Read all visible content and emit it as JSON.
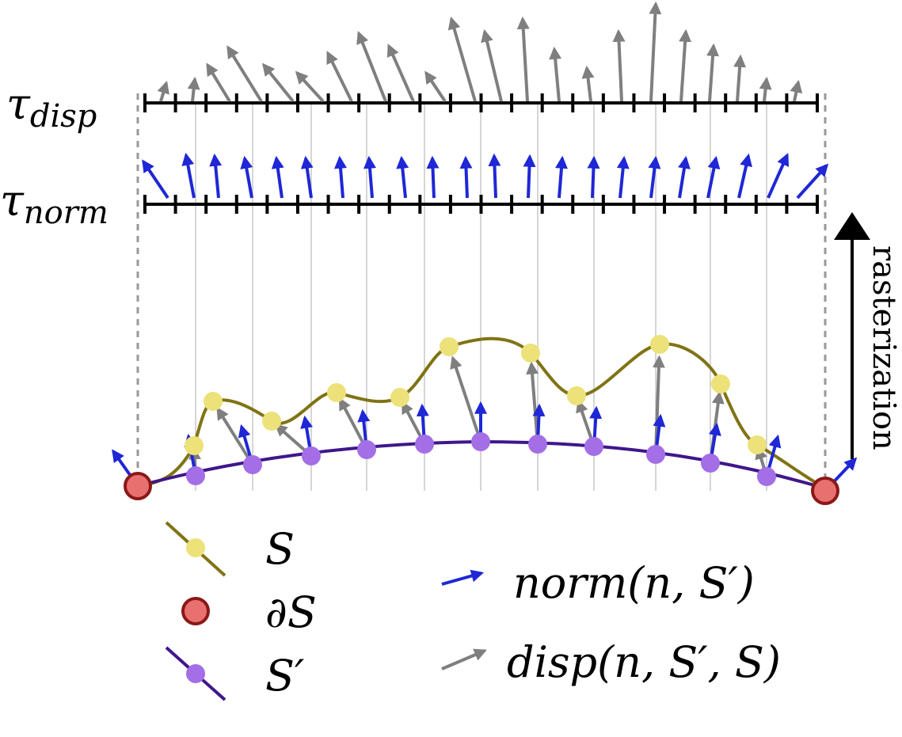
{
  "labels": {
    "tau_disp": {
      "symbol": "τ",
      "subscript": "disp"
    },
    "tau_norm": {
      "symbol": "τ",
      "subscript": "norm"
    },
    "rasterization": "rasterization"
  },
  "legend": {
    "S": "S",
    "boundary": "∂S",
    "S_prime": "S′",
    "norm": "norm(n, S′)",
    "disp": "disp(n, S′, S)"
  },
  "colors": {
    "S_curve": "#807314",
    "S_point": "#ece279",
    "S_prime_curve": "#3f168a",
    "S_prime_point": "#a36ee6",
    "boundary_fill": "#e8706e",
    "boundary_stroke": "#8b1818",
    "norm_arrow": "#1f27d6",
    "disp_arrow": "#7f7f7f",
    "axis": "#000000",
    "guide": "#bbbbbb",
    "dashed": "#999999"
  },
  "icons": {
    "S": "line-with-yellow-dot",
    "boundary": "red-circle",
    "S_prime": "line-with-purple-dot",
    "norm": "blue-arrow",
    "disp": "gray-arrow",
    "rasterization": "black-up-arrow"
  }
}
